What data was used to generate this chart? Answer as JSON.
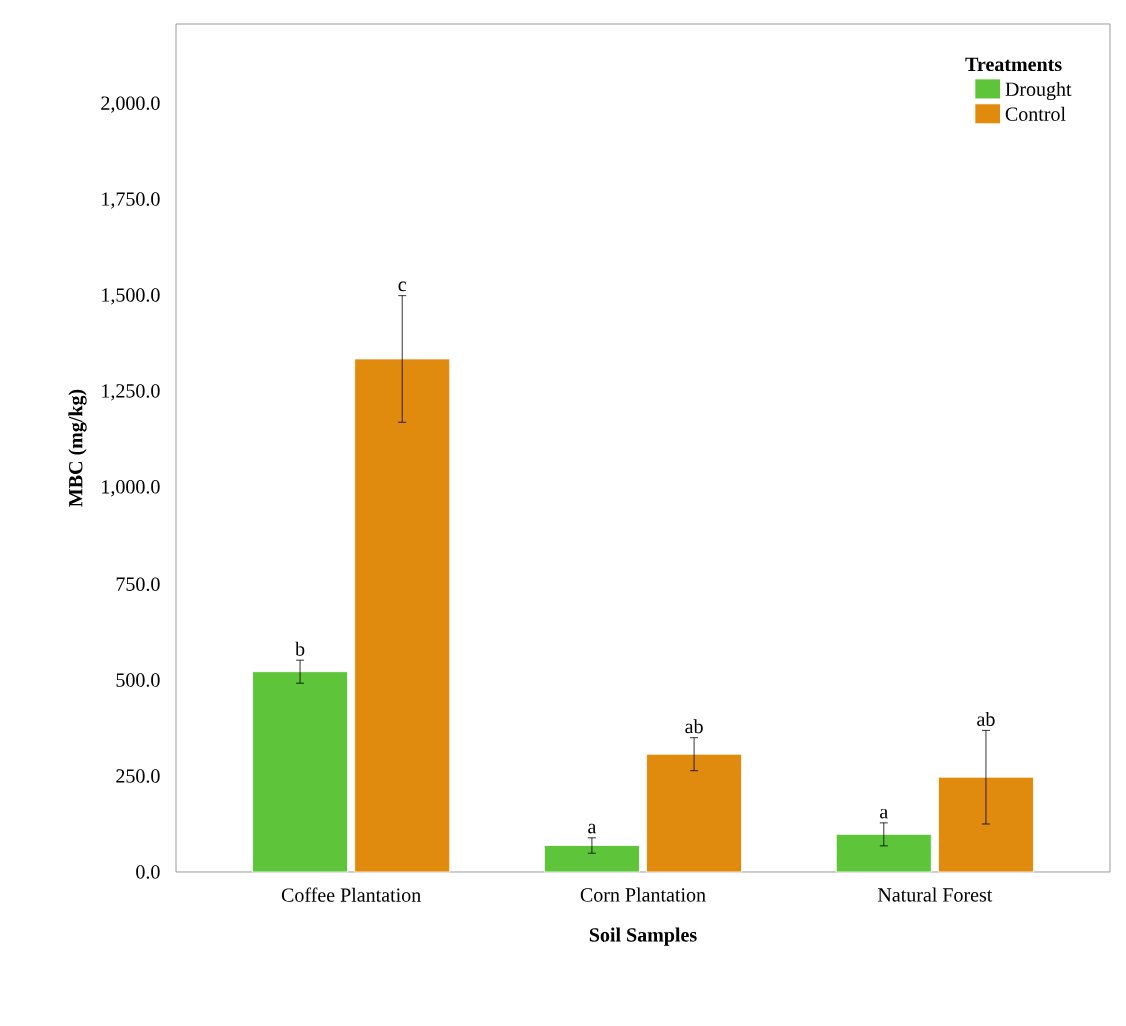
{
  "chart_data": {
    "type": "bar",
    "xlabel": "Soil Samples",
    "ylabel": "MBC (mg/kg)",
    "legend_title": "Treatments",
    "legend": "top right",
    "categories": [
      "Coffee Plantation",
      "Corn Plantation",
      "Natural Forest"
    ],
    "series": [
      {
        "name": "Drought",
        "color": "#5ec43a",
        "values": [
          522,
          69,
          98
        ],
        "errors": [
          30,
          20,
          30
        ]
      },
      {
        "name": "Control",
        "color": "#e08a0e",
        "values": [
          1337,
          307,
          247
        ],
        "errors": [
          165,
          43,
          122
        ]
      }
    ],
    "annotations": [
      "b",
      "a",
      "a",
      "c",
      "ab",
      "ab"
    ],
    "ylim": [
      0,
      2210
    ],
    "yticks": [
      {
        "value": 0,
        "label": "0.0"
      },
      {
        "value": 250,
        "label": "250.0"
      },
      {
        "value": 500,
        "label": "500.0"
      },
      {
        "value": 750,
        "label": "750.0"
      },
      {
        "value": 1000,
        "label": "1,000.0"
      },
      {
        "value": 1250,
        "label": "1,250.0"
      },
      {
        "value": 1500,
        "label": "1,500.0"
      },
      {
        "value": 1750,
        "label": "1,750.0"
      },
      {
        "value": 2000,
        "label": "2,000.0"
      }
    ]
  }
}
